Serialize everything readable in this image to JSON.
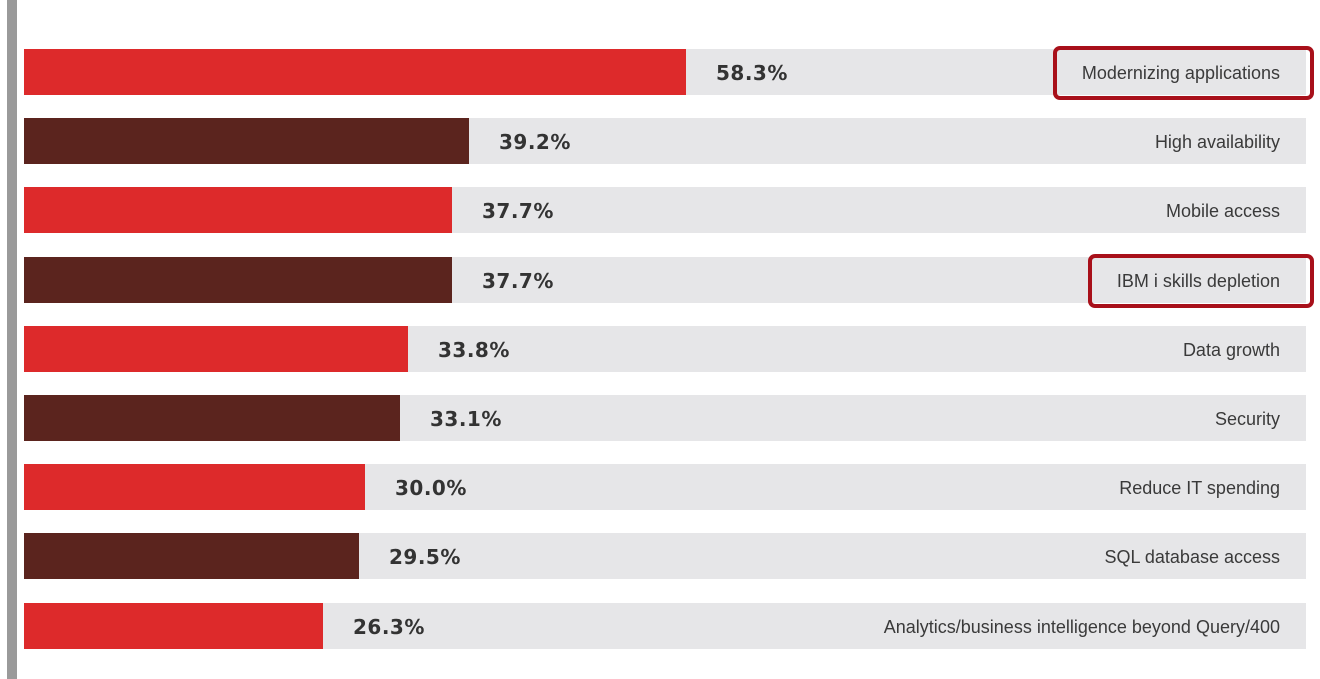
{
  "chart_data": {
    "type": "bar",
    "orientation": "horizontal",
    "categories": [
      "Modernizing applications",
      "High availability",
      "Mobile access",
      "IBM i skills depletion",
      "Data growth",
      "Security",
      "Reduce IT spending",
      "SQL database access",
      "Analytics/business intelligence beyond Query/400"
    ],
    "values": [
      58.3,
      39.2,
      37.7,
      37.7,
      33.8,
      33.1,
      30.0,
      29.5,
      26.3
    ],
    "value_labels": [
      "58.3%",
      "39.2%",
      "37.7%",
      "37.7%",
      "33.8%",
      "33.1%",
      "30.0%",
      "29.5%",
      "26.3%"
    ],
    "highlighted": [
      "Modernizing applications",
      "IBM i skills depletion"
    ],
    "xlim": [
      0,
      100
    ],
    "grid": false,
    "legend": "none"
  },
  "colors": {
    "bar_primary": "#dd2a2b",
    "bar_secondary": "#5b241e",
    "track": "#e6e6e8",
    "highlight_border": "#a8101a"
  }
}
